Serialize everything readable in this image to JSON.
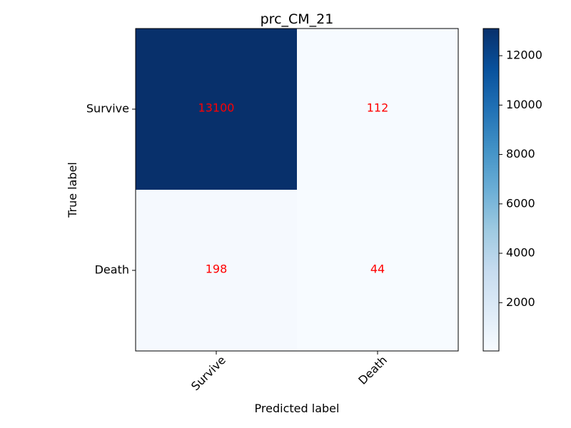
{
  "chart_data": {
    "type": "heatmap",
    "title": "prc_CM_21",
    "xlabel": "Predicted label",
    "ylabel": "True label",
    "x_categories": [
      "Survive",
      "Death"
    ],
    "y_categories": [
      "Survive",
      "Death"
    ],
    "values": [
      [
        13100,
        112
      ],
      [
        198,
        44
      ]
    ],
    "value_text_color": "#ff0000",
    "colormap": "Blues",
    "color_range": [
      44,
      13100
    ],
    "colorbar_ticks": [
      2000,
      4000,
      6000,
      8000,
      10000,
      12000
    ],
    "x_tick_rotation_deg": 45
  }
}
